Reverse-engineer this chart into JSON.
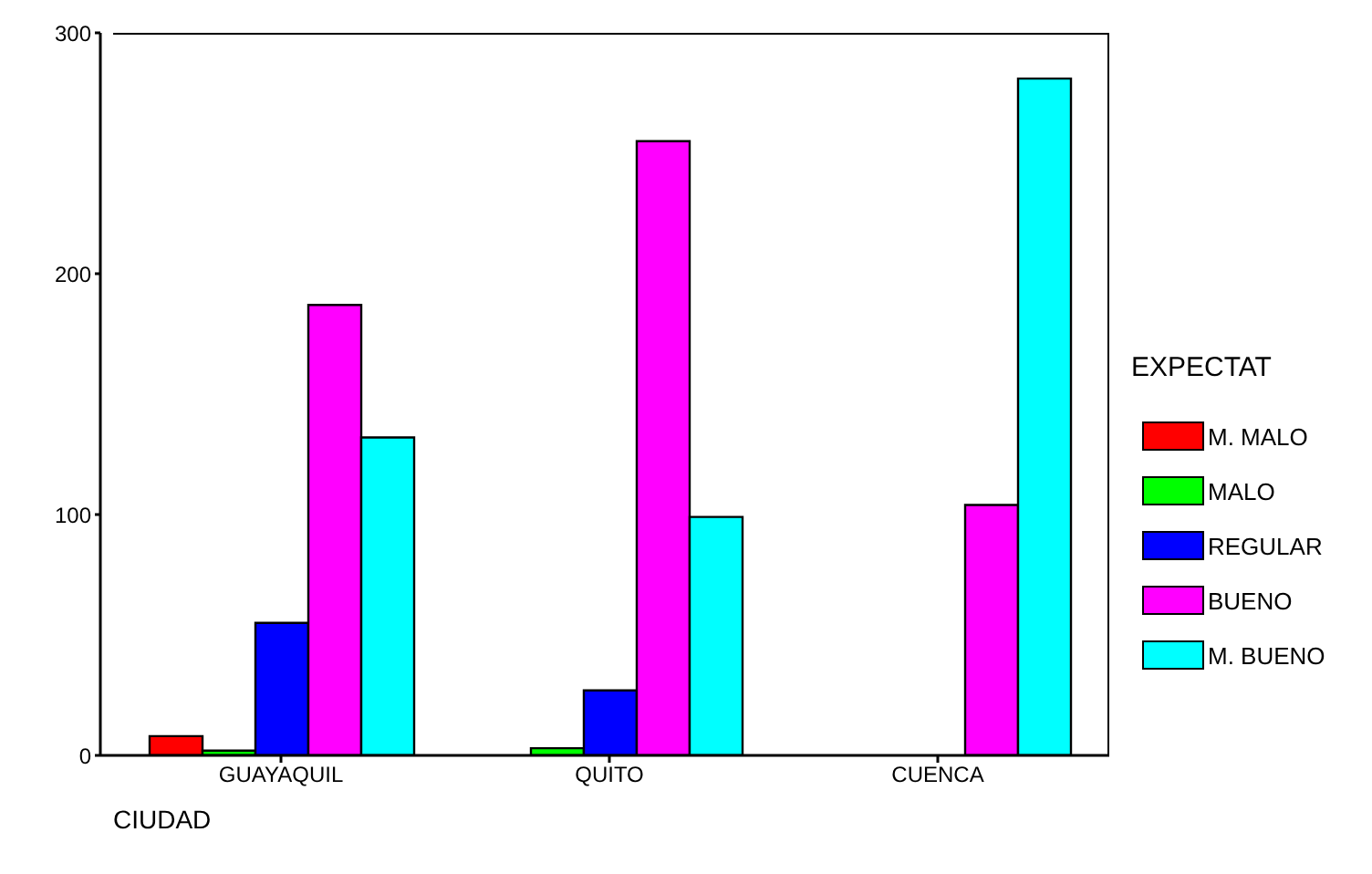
{
  "chart_data": {
    "type": "bar",
    "xlabel": "CIUDAD",
    "legend_title": "EXPECTAT",
    "legend": "right",
    "categories": [
      "GUAYAQUIL",
      "QUITO",
      "CUENCA"
    ],
    "ylim": [
      0,
      300
    ],
    "yticks": [
      0,
      100,
      200,
      300
    ],
    "series": [
      {
        "name": "M. MALO",
        "color": "#ff0000",
        "values": [
          8,
          0,
          0
        ]
      },
      {
        "name": "MALO",
        "color": "#00ff00",
        "values": [
          2,
          3,
          0
        ]
      },
      {
        "name": "REGULAR",
        "color": "#0000ff",
        "values": [
          55,
          27,
          0
        ]
      },
      {
        "name": "BUENO",
        "color": "#ff00ff",
        "values": [
          187,
          255,
          104
        ]
      },
      {
        "name": "M. BUENO",
        "color": "#00ffff",
        "values": [
          132,
          99,
          281
        ]
      }
    ]
  }
}
